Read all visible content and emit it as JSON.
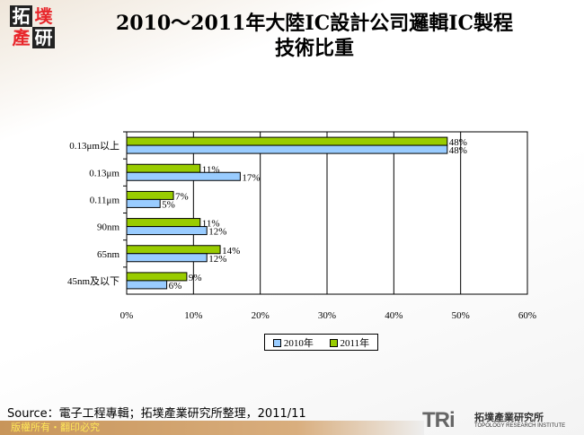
{
  "logo": {
    "chars": [
      "拓",
      "墣",
      "產",
      "研"
    ]
  },
  "title_line1": "2010～2011年大陸IC設計公司邏輯IC製程",
  "title_line2": "技術比重",
  "chart_data": {
    "type": "bar",
    "orientation": "horizontal",
    "categories": [
      "0.13μm以上",
      "0.13μm",
      "0.11μm",
      "90nm",
      "65nm",
      "45nm及以下"
    ],
    "series": [
      {
        "name": "2010年",
        "color": "#99ccff",
        "values": [
          48,
          17,
          5,
          12,
          12,
          6
        ],
        "labels": [
          "48%",
          "17%",
          "5%",
          "12%",
          "12%",
          "6%"
        ]
      },
      {
        "name": "2011年",
        "color": "#99cc00",
        "values": [
          48,
          11,
          7,
          11,
          14,
          9
        ],
        "labels": [
          "48%",
          "11%",
          "7%",
          "11%",
          "14%",
          "9%"
        ]
      }
    ],
    "xlim": [
      0,
      60
    ],
    "xticks": [
      "0%",
      "10%",
      "20%",
      "30%",
      "40%",
      "50%",
      "60%"
    ],
    "grid": true,
    "legend_position": "bottom"
  },
  "source": "Source：電子工程專輯；拓墣產業研究所整理，2011/11",
  "footer": "版權所有・翻印必究",
  "brand": {
    "mark": "TRi",
    "name_cn": "拓墣產業研究所",
    "name_en": "TOPOLOGY RESEARCH INSTITUTE"
  }
}
